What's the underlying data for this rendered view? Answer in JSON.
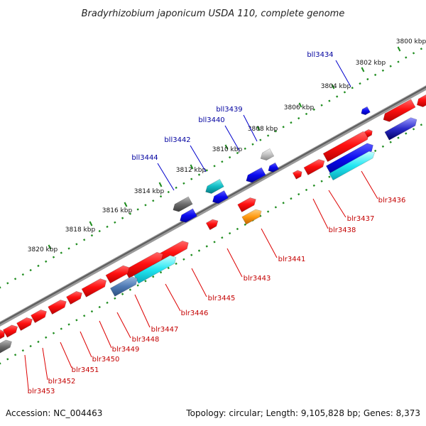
{
  "title": "Bradyrhizobium japonicum USDA 110, complete genome",
  "footer": {
    "accession": "Accession: NC_004463",
    "summary": "Topology: circular; Length: 9,105,828 bp; Genes: 8,373"
  },
  "colors": {
    "label_top": "#00009f",
    "label_bottom": "#c40000",
    "leader_top": "#0000cc",
    "leader_bottom": "#dd0000",
    "scale_dot": "#1e8c1e",
    "backbone": "#777777"
  },
  "kbp_ticks": [
    "3800 kbp",
    "3802 kbp",
    "3804 kbp",
    "3806 kbp",
    "3808 kbp",
    "3810 kbp",
    "3812 kbp",
    "3814 kbp",
    "3816 kbp",
    "3818 kbp",
    "3820 kbp"
  ],
  "genes_top": [
    "bll3434",
    "bll3439",
    "bll3440",
    "bll3442",
    "bll3444"
  ],
  "genes_bottom": [
    "blr3436",
    "blr3437",
    "blr3438",
    "blr3441",
    "blr3443",
    "blr3445",
    "blr3446",
    "blr3447",
    "blr3448",
    "blr3449",
    "blr3450",
    "blr3451",
    "blr3452",
    "blr3453"
  ]
}
